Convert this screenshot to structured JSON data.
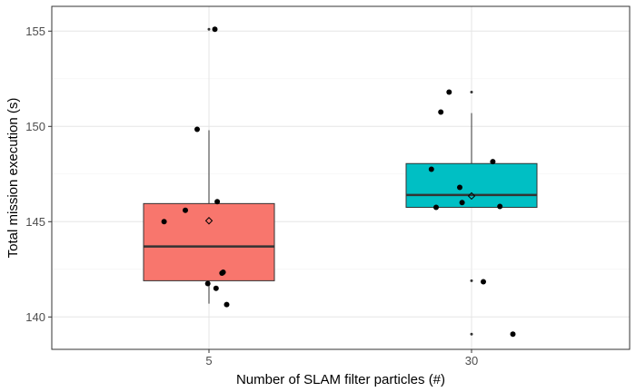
{
  "chart_data": {
    "type": "boxplot",
    "title": "",
    "xlabel": "Number of SLAM filter particles (#)",
    "ylabel": "Total mission execution (s)",
    "categories": [
      "5",
      "30"
    ],
    "ylim": [
      138.3,
      156.3
    ],
    "yticks": [
      140,
      145,
      150,
      155
    ],
    "grid": true,
    "legend": "none",
    "boxes": [
      {
        "category": "5",
        "color": "#F8766D",
        "lower_whisker": 140.7,
        "q1": 141.9,
        "median": 143.7,
        "q3": 145.95,
        "upper_whisker": 149.8,
        "mean": 145.05,
        "outliers": [
          155.1
        ]
      },
      {
        "category": "30",
        "color": "#00BFC4",
        "lower_whisker": 145.75,
        "q1": 145.75,
        "median": 146.4,
        "q3": 148.05,
        "upper_whisker": 150.7,
        "mean": 146.35,
        "outliers": [
          151.8,
          141.9,
          139.1
        ]
      }
    ],
    "points": [
      {
        "category": "5",
        "values": [
          155.1,
          149.85,
          146.05,
          145.6,
          145.0,
          142.35,
          142.3,
          141.75,
          141.5,
          140.65
        ],
        "jitter": [
          0.05,
          -0.1,
          0.07,
          -0.2,
          -0.38,
          0.12,
          0.11,
          -0.01,
          0.06,
          0.15
        ]
      },
      {
        "category": "30",
        "values": [
          151.8,
          150.75,
          148.15,
          147.75,
          146.8,
          146.0,
          145.8,
          145.75,
          141.85,
          139.1
        ],
        "jitter": [
          -0.19,
          -0.26,
          0.18,
          -0.34,
          -0.1,
          -0.08,
          0.24,
          -0.3,
          0.1,
          0.35
        ]
      }
    ]
  }
}
